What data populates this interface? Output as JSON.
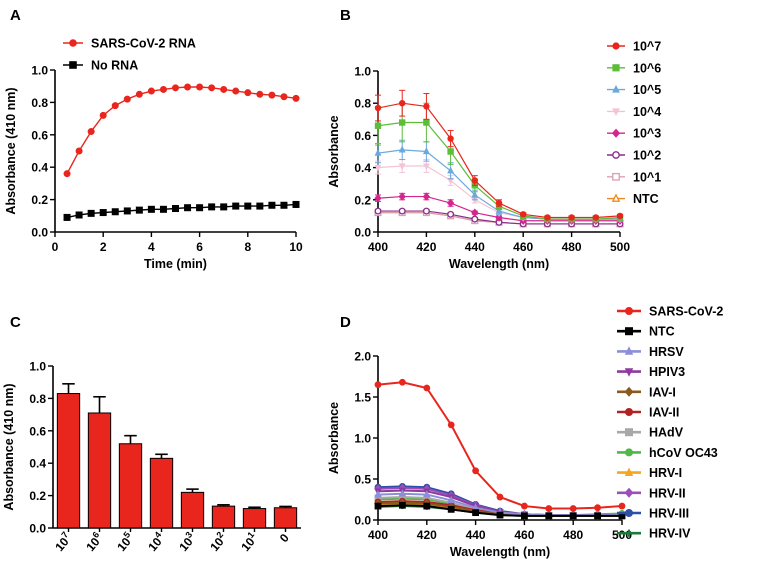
{
  "chart_data": [
    {
      "panel": "A",
      "type": "line",
      "xlabel": "Time (min)",
      "ylabel": "Absorbance (410 nm)",
      "xlim": [
        0,
        10
      ],
      "ylim": [
        0,
        1.0
      ],
      "xticks": [
        0,
        2,
        4,
        6,
        8,
        10
      ],
      "yticks": [
        0.0,
        0.2,
        0.4,
        0.6,
        0.8,
        1.0
      ],
      "ytick_labels": [
        "0.0",
        "0.2",
        "0.4",
        "0.6",
        "0.8",
        "1.0"
      ],
      "legend_position": "top-left",
      "x": [
        0.5,
        1,
        1.5,
        2,
        2.5,
        3,
        3.5,
        4,
        4.5,
        5,
        5.5,
        6,
        6.5,
        7,
        7.5,
        8,
        8.5,
        9,
        9.5,
        10
      ],
      "series": [
        {
          "name": "SARS-CoV-2 RNA",
          "color": "#e8261e",
          "marker": "circle",
          "values": [
            0.36,
            0.5,
            0.62,
            0.72,
            0.78,
            0.82,
            0.85,
            0.87,
            0.88,
            0.89,
            0.895,
            0.895,
            0.89,
            0.88,
            0.87,
            0.86,
            0.85,
            0.845,
            0.835,
            0.825
          ]
        },
        {
          "name": "No RNA",
          "color": "#000000",
          "marker": "square",
          "values": [
            0.09,
            0.105,
            0.115,
            0.12,
            0.125,
            0.13,
            0.135,
            0.14,
            0.14,
            0.145,
            0.15,
            0.15,
            0.155,
            0.155,
            0.16,
            0.16,
            0.16,
            0.165,
            0.165,
            0.17
          ]
        }
      ]
    },
    {
      "panel": "B",
      "type": "line",
      "xlabel": "Wavelength (nm)",
      "ylabel": "Absorbance",
      "xlim": [
        400,
        500
      ],
      "ylim": [
        0,
        1.0
      ],
      "xticks": [
        400,
        420,
        440,
        460,
        480,
        500
      ],
      "yticks": [
        0.0,
        0.2,
        0.4,
        0.6,
        0.8,
        1.0
      ],
      "ytick_labels": [
        "0.0",
        "0.2",
        "0.4",
        "0.6",
        "0.8",
        "1.0"
      ],
      "legend_position": "right",
      "x": [
        400,
        410,
        420,
        430,
        440,
        450,
        460,
        470,
        480,
        490,
        500
      ],
      "series": [
        {
          "name": "10^7",
          "color": "#e8261e",
          "marker": "circle",
          "values": [
            0.77,
            0.8,
            0.78,
            0.58,
            0.32,
            0.18,
            0.11,
            0.09,
            0.09,
            0.09,
            0.1
          ],
          "errors": [
            0.08,
            0.08,
            0.08,
            0.05,
            0.03,
            0.02,
            0.01,
            0.01,
            0.01,
            0.01,
            0.01
          ]
        },
        {
          "name": "10^6",
          "color": "#5cbd3a",
          "marker": "square",
          "values": [
            0.66,
            0.68,
            0.68,
            0.5,
            0.29,
            0.16,
            0.1,
            0.08,
            0.08,
            0.08,
            0.09
          ],
          "errors": [
            0.12,
            0.12,
            0.12,
            0.08,
            0.04,
            0.02,
            0.01,
            0.01,
            0.01,
            0.01,
            0.01
          ]
        },
        {
          "name": "10^5",
          "color": "#6aa9de",
          "marker": "triangle",
          "values": [
            0.49,
            0.51,
            0.5,
            0.38,
            0.23,
            0.13,
            0.09,
            0.08,
            0.08,
            0.08,
            0.08
          ],
          "errors": [
            0.06,
            0.06,
            0.06,
            0.05,
            0.03,
            0.02,
            0.01,
            0.01,
            0.01,
            0.01,
            0.01
          ]
        },
        {
          "name": "10^4",
          "color": "#f4c4d6",
          "marker": "triangle-down",
          "values": [
            0.4,
            0.41,
            0.41,
            0.32,
            0.2,
            0.12,
            0.09,
            0.08,
            0.08,
            0.08,
            0.08
          ],
          "errors": [
            0.04,
            0.04,
            0.04,
            0.03,
            0.02,
            0.01,
            0.01,
            0.01,
            0.01,
            0.01,
            0.01
          ]
        },
        {
          "name": "10^3",
          "color": "#d6248f",
          "marker": "diamond",
          "values": [
            0.21,
            0.22,
            0.22,
            0.18,
            0.12,
            0.09,
            0.07,
            0.07,
            0.07,
            0.07,
            0.07
          ],
          "errors": [
            0.02,
            0.02,
            0.02,
            0.02,
            0.01,
            0.01,
            0.01,
            0.01,
            0.01,
            0.01,
            0.01
          ]
        },
        {
          "name": "10^2",
          "color": "#8a2c8c",
          "marker": "open-circle",
          "values": [
            0.13,
            0.13,
            0.13,
            0.11,
            0.08,
            0.06,
            0.05,
            0.05,
            0.05,
            0.05,
            0.05
          ],
          "errors": [
            0.01,
            0.01,
            0.01,
            0.01,
            0.01,
            0.01,
            0.01,
            0.01,
            0.01,
            0.01,
            0.01
          ]
        },
        {
          "name": "10^1",
          "color": "#d9a0b6",
          "marker": "open-square",
          "values": [
            0.12,
            0.12,
            0.12,
            0.1,
            0.07,
            0.06,
            0.05,
            0.05,
            0.05,
            0.05,
            0.05
          ],
          "errors": [
            0.01,
            0.01,
            0.01,
            0.01,
            0.01,
            0.01,
            0.01,
            0.01,
            0.01,
            0.01,
            0.01
          ]
        },
        {
          "name": "NTC",
          "color": "#f08a1c",
          "marker": "open-triangle",
          "values": [
            0.12,
            0.12,
            0.12,
            0.1,
            0.07,
            0.06,
            0.05,
            0.05,
            0.05,
            0.05,
            0.05
          ],
          "errors": [
            0.01,
            0.01,
            0.01,
            0.01,
            0.01,
            0.01,
            0.01,
            0.01,
            0.01,
            0.01,
            0.01
          ]
        }
      ]
    },
    {
      "panel": "C",
      "type": "bar",
      "xlabel": "",
      "ylabel": "Absorbance (410 nm)",
      "ylim": [
        0,
        1.0
      ],
      "yticks": [
        0.0,
        0.2,
        0.4,
        0.6,
        0.8,
        1.0
      ],
      "ytick_labels": [
        "0.0",
        "0.2",
        "0.4",
        "0.6",
        "0.8",
        "1.0"
      ],
      "categories": [
        {
          "base": "10",
          "exp": "7"
        },
        {
          "base": "10",
          "exp": "6"
        },
        {
          "base": "10",
          "exp": "5"
        },
        {
          "base": "10",
          "exp": "4"
        },
        {
          "base": "10",
          "exp": "3"
        },
        {
          "base": "10",
          "exp": "2"
        },
        {
          "base": "10",
          "exp": "1"
        },
        {
          "base": "0",
          "exp": ""
        }
      ],
      "values": [
        0.83,
        0.71,
        0.52,
        0.43,
        0.22,
        0.135,
        0.12,
        0.125
      ],
      "errors": [
        0.06,
        0.1,
        0.05,
        0.025,
        0.02,
        0.008,
        0.008,
        0.008
      ],
      "color": "#e8261e"
    },
    {
      "panel": "D",
      "type": "line",
      "xlabel": "Wavelength (nm)",
      "ylabel": "Absorbance",
      "xlim": [
        400,
        500
      ],
      "ylim": [
        0,
        2.0
      ],
      "xticks": [
        400,
        420,
        440,
        460,
        480,
        500
      ],
      "yticks": [
        0.0,
        0.5,
        1.0,
        1.5,
        2.0
      ],
      "ytick_labels": [
        "0.0",
        "0.5",
        "1.0",
        "1.5",
        "2.0"
      ],
      "legend_position": "right",
      "x": [
        400,
        410,
        420,
        430,
        440,
        450,
        460,
        470,
        480,
        490,
        500
      ],
      "series": [
        {
          "name": "SARS-CoV-2",
          "color": "#e8261e",
          "marker": "circle",
          "values": [
            1.65,
            1.68,
            1.61,
            1.16,
            0.6,
            0.28,
            0.17,
            0.14,
            0.14,
            0.15,
            0.17
          ]
        },
        {
          "name": "NTC",
          "color": "#000000",
          "marker": "square",
          "values": [
            0.17,
            0.18,
            0.17,
            0.13,
            0.09,
            0.06,
            0.05,
            0.05,
            0.05,
            0.05,
            0.05
          ]
        },
        {
          "name": "HRSV",
          "color": "#8c8fd8",
          "marker": "triangle",
          "values": [
            0.31,
            0.32,
            0.31,
            0.24,
            0.15,
            0.09,
            0.07,
            0.06,
            0.06,
            0.06,
            0.06
          ]
        },
        {
          "name": "HPIV3",
          "color": "#8e3a9e",
          "marker": "triangle-down",
          "values": [
            0.35,
            0.36,
            0.35,
            0.28,
            0.17,
            0.1,
            0.07,
            0.06,
            0.06,
            0.06,
            0.06
          ]
        },
        {
          "name": "IAV-I",
          "color": "#8a5a1e",
          "marker": "diamond",
          "values": [
            0.2,
            0.21,
            0.2,
            0.16,
            0.11,
            0.07,
            0.05,
            0.05,
            0.05,
            0.05,
            0.05
          ]
        },
        {
          "name": "IAV-II",
          "color": "#b22222",
          "marker": "circle",
          "values": [
            0.22,
            0.23,
            0.22,
            0.18,
            0.12,
            0.08,
            0.06,
            0.05,
            0.05,
            0.05,
            0.05
          ]
        },
        {
          "name": "HAdV",
          "color": "#a8a8a8",
          "marker": "square",
          "values": [
            0.27,
            0.28,
            0.27,
            0.21,
            0.13,
            0.08,
            0.06,
            0.05,
            0.05,
            0.05,
            0.05
          ]
        },
        {
          "name": "hCoV OC43",
          "color": "#4fb848",
          "marker": "circle",
          "values": [
            0.25,
            0.26,
            0.25,
            0.2,
            0.13,
            0.08,
            0.06,
            0.06,
            0.06,
            0.07,
            0.08
          ]
        },
        {
          "name": "HRV-I",
          "color": "#f4a623",
          "marker": "triangle",
          "values": [
            0.18,
            0.19,
            0.18,
            0.15,
            0.1,
            0.07,
            0.05,
            0.05,
            0.05,
            0.05,
            0.05
          ]
        },
        {
          "name": "HRV-II",
          "color": "#9b4fb8",
          "marker": "diamond",
          "values": [
            0.38,
            0.39,
            0.38,
            0.3,
            0.18,
            0.1,
            0.07,
            0.06,
            0.06,
            0.06,
            0.06
          ]
        },
        {
          "name": "HRV-III",
          "color": "#2c4fa8",
          "marker": "circle",
          "values": [
            0.4,
            0.41,
            0.4,
            0.32,
            0.19,
            0.11,
            0.07,
            0.06,
            0.06,
            0.06,
            0.06
          ]
        },
        {
          "name": "HRV-IV",
          "color": "#1e7a3c",
          "marker": "cross",
          "values": [
            0.16,
            0.17,
            0.16,
            0.13,
            0.09,
            0.06,
            0.05,
            0.05,
            0.05,
            0.05,
            0.05
          ]
        }
      ]
    }
  ],
  "panel_letters": [
    "A",
    "B",
    "C",
    "D"
  ]
}
